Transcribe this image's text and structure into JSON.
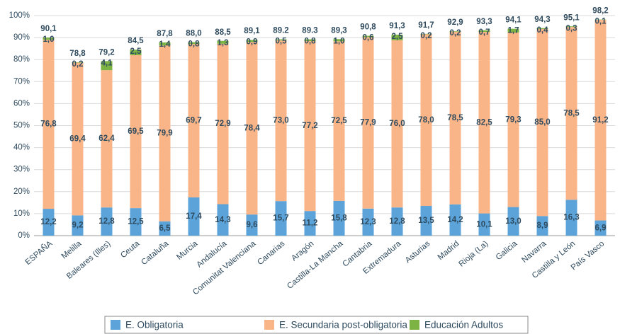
{
  "chart_data": {
    "type": "stacked_bar",
    "categories": [
      "ESPAÑA",
      "Melilla",
      "Baleares (Illes)",
      "Ceuta",
      "Cataluña",
      "Murcia",
      "Andalucía",
      "Comunitat Valenciana",
      "Canarias",
      "Aragón",
      "Castilla-La Mancha",
      "Cantabria",
      "Extremadura",
      "Asturias",
      "Madrid",
      "Rioja (La)",
      "Galicia",
      "Navarra",
      "Castilla y León",
      "País Vasco"
    ],
    "series": [
      {
        "name": "E. Obligatoria",
        "color": "#5ba3d9",
        "values": [
          12.2,
          9.2,
          12.8,
          12.5,
          6.5,
          17.4,
          14.3,
          9.6,
          15.7,
          11.2,
          15.8,
          12.3,
          12.8,
          13.5,
          14.2,
          10.1,
          13.0,
          8.9,
          16.3,
          6.9
        ],
        "value_labels": [
          "12,2",
          "9,2",
          "12,8",
          "12,5",
          "6,5",
          "17,4",
          "14,3",
          "9,6",
          "15,7",
          "11,2",
          "15,8",
          "12,3",
          "12,8",
          "13,5",
          "14,2",
          "10,1",
          "13,0",
          "8,9",
          "16,3",
          "6,9"
        ]
      },
      {
        "name": "E. Secundaria post-obligatoria",
        "color": "#f9b587",
        "values": [
          76.8,
          69.4,
          62.4,
          69.5,
          79.9,
          69.7,
          72.9,
          78.4,
          73.0,
          77.2,
          72.5,
          77.9,
          76.0,
          78.0,
          78.5,
          82.5,
          79.3,
          85.0,
          78.5,
          91.2
        ],
        "value_labels": [
          "76,8",
          "69,4",
          "62,4",
          "69,5",
          "79,9",
          "69,7",
          "72,9",
          "78,4",
          "73,0",
          "77,2",
          "72,5",
          "77,9",
          "76,0",
          "78,0",
          "78,5",
          "82,5",
          "79,3",
          "85,0",
          "78,5",
          "91,2"
        ]
      },
      {
        "name": "Educación Adultos",
        "color": "#7cb342",
        "values": [
          1.0,
          0.2,
          4.1,
          2.5,
          1.4,
          0.8,
          1.3,
          0.9,
          0.5,
          0.8,
          1.0,
          0.6,
          2.5,
          0.2,
          0.2,
          0.7,
          1.7,
          0.4,
          0.3,
          0.1
        ],
        "value_labels": [
          "1,0",
          "0,2",
          "4,1",
          "2,5",
          "1,4",
          "0,8",
          "1,3",
          "0,9",
          "0,5",
          "0,8",
          "1,0",
          "0,6",
          "2,5",
          "0,2",
          "0,2",
          "0,7",
          "1,7",
          "0,4",
          "0,3",
          "0,1"
        ]
      }
    ],
    "totals": [
      90.1,
      78.8,
      79.2,
      84.5,
      87.8,
      88.0,
      88.5,
      89.1,
      89.2,
      89.3,
      89.3,
      90.8,
      91.3,
      91.7,
      92.9,
      93.3,
      94.1,
      94.3,
      95.1,
      98.2
    ],
    "total_labels": [
      "90,1",
      "78,8",
      "79,2",
      "84,5",
      "87,8",
      "88,0",
      "88,5",
      "89,1",
      "89.2",
      "89.3",
      "89,3",
      "90,8",
      "91,3",
      "91,7",
      "92,9",
      "93,3",
      "94,1",
      "94,3",
      "95,1",
      "98,2"
    ],
    "ylim": [
      0,
      100
    ],
    "yticks": [
      {
        "value": 0,
        "label": "0%"
      },
      {
        "value": 10,
        "label": "10%"
      },
      {
        "value": 20,
        "label": "20%"
      },
      {
        "value": 30,
        "label": "30%"
      },
      {
        "value": 40,
        "label": "40%"
      },
      {
        "value": 50,
        "label": "50%"
      },
      {
        "value": 60,
        "label": "60%"
      },
      {
        "value": 70,
        "label": "70%"
      },
      {
        "value": 80,
        "label": "80%"
      },
      {
        "value": 90,
        "label": "90%"
      },
      {
        "value": 100,
        "label": "100%"
      }
    ],
    "grid": true,
    "legend": "bottom"
  }
}
